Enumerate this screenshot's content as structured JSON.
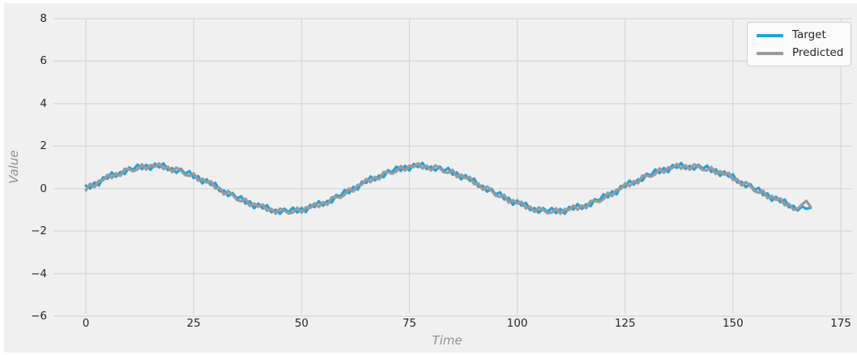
{
  "chart_data": {
    "type": "line",
    "title": "",
    "xlabel": "Time",
    "ylabel": "Value",
    "xlim": [
      -7.5,
      177.5
    ],
    "ylim": [
      -6,
      8
    ],
    "grid": true,
    "legend_position": "upper right",
    "style": "fivethirtyeight-like gray background with light gridlines",
    "xticks": {
      "values": [
        0,
        25,
        50,
        75,
        100,
        125,
        150,
        175
      ],
      "labels": [
        "0",
        "25",
        "50",
        "75",
        "100",
        "125",
        "150",
        "175"
      ]
    },
    "yticks": {
      "values": [
        8,
        6,
        4,
        2,
        0,
        -2,
        -4,
        -6
      ],
      "labels": [
        "8",
        "6",
        "4",
        "2",
        "0",
        "−2",
        "−4",
        "−6"
      ]
    },
    "x_start": 0,
    "x_step": 1,
    "series": [
      {
        "name": "Target",
        "color": "#22a1dd",
        "values": [
          0.14,
          0.01,
          0.29,
          0.15,
          0.53,
          0.47,
          0.76,
          0.56,
          0.78,
          0.69,
          0.99,
          0.88,
          1.13,
          0.92,
          1.12,
          0.89,
          1.17,
          1.0,
          1.18,
          0.87,
          0.96,
          0.75,
          0.93,
          0.7,
          0.82,
          0.5,
          0.59,
          0.25,
          0.43,
          0.17,
          0.27,
          -0.12,
          -0.09,
          -0.35,
          -0.21,
          -0.47,
          -0.37,
          -0.7,
          -0.6,
          -0.92,
          -0.71,
          -0.93,
          -0.78,
          -1.11,
          -1.0,
          -1.18,
          -0.95,
          -1.11,
          -0.9,
          -1.12,
          -0.91,
          -1.1,
          -0.77,
          -0.87,
          -0.6,
          -0.8,
          -0.58,
          -0.65,
          -0.31,
          -0.37,
          -0.07,
          -0.21,
          0.08,
          -0.05,
          0.33,
          0.27,
          0.57,
          0.39,
          0.62,
          0.54,
          0.86,
          0.77,
          1.03,
          0.84,
          1.07,
          0.86,
          1.16,
          1.01,
          1.21,
          0.92,
          1.04,
          0.85,
          1.04,
          0.83,
          0.97,
          0.66,
          0.76,
          0.44,
          0.63,
          0.37,
          0.47,
          0.09,
          0.13,
          -0.14,
          -0.01,
          -0.27,
          -0.17,
          -0.51,
          -0.43,
          -0.76,
          -0.56,
          -0.8,
          -0.67,
          -1.01,
          -0.92,
          -1.13,
          -0.92,
          -1.1,
          -0.91,
          -1.15,
          -0.96,
          -1.18,
          -0.87,
          -0.98,
          -0.73,
          -0.95,
          -0.74,
          -0.82,
          -0.5,
          -0.57,
          -0.27,
          -0.41,
          -0.13,
          -0.27,
          0.12,
          0.07,
          0.37,
          0.19,
          0.43,
          0.37,
          0.7,
          0.62,
          0.9,
          0.73,
          0.97,
          0.78,
          1.11,
          0.98,
          1.2,
          0.93,
          1.07,
          0.9,
          1.12,
          0.93,
          1.08,
          0.79,
          0.91,
          0.6,
          0.8,
          0.56,
          0.67,
          0.29,
          0.33,
          0.07,
          0.21,
          -0.06,
          0.03,
          -0.31,
          -0.23,
          -0.57,
          -0.39,
          -0.64,
          -0.52,
          -0.88,
          -0.81,
          -1.03,
          -0.84,
          -0.95,
          -0.9
        ]
      },
      {
        "name": "Predicted",
        "color": "#9a9a9a",
        "values": [
          -0.08,
          0.23,
          0.07,
          0.37,
          0.39,
          0.65,
          0.5,
          0.72,
          0.6,
          0.93,
          0.91,
          0.82,
          0.91,
          1.14,
          0.9,
          1.11,
          1.03,
          1.18,
          0.92,
          1.03,
          0.78,
          0.99,
          0.85,
          0.64,
          0.6,
          0.72,
          0.37,
          0.47,
          0.29,
          0.35,
          0.01,
          0.04,
          -0.27,
          -0.11,
          -0.29,
          -0.53,
          -0.59,
          -0.48,
          -0.82,
          -0.7,
          -0.85,
          -0.75,
          -1.04,
          -0.95,
          -1.18,
          -0.94,
          -1.03,
          -1.17,
          -1.12,
          -0.9,
          -1.13,
          -0.88,
          -0.91,
          -0.69,
          -0.86,
          -0.64,
          -0.76,
          -0.41,
          -0.39,
          -0.43,
          -0.29,
          0.01,
          -0.14,
          0.17,
          0.19,
          0.45,
          0.31,
          0.55,
          0.44,
          0.78,
          0.78,
          0.71,
          0.81,
          1.06,
          0.85,
          1.08,
          1.02,
          1.19,
          0.95,
          1.08,
          0.86,
          1.09,
          0.96,
          0.77,
          0.75,
          0.88,
          0.54,
          0.66,
          0.49,
          0.55,
          0.21,
          0.25,
          -0.05,
          0.1,
          -0.09,
          -0.33,
          -0.39,
          -0.29,
          -0.65,
          -0.54,
          -0.7,
          -0.62,
          -0.93,
          -0.85,
          -1.1,
          -0.89,
          -1.0,
          -1.16,
          -1.13,
          -0.93,
          -1.18,
          -0.96,
          -1.01,
          -0.8,
          -0.99,
          -0.79,
          -0.92,
          -0.58,
          -0.58,
          -0.63,
          -0.49,
          -0.19,
          -0.35,
          -0.05,
          -0.02,
          0.25,
          0.11,
          0.35,
          0.25,
          0.61,
          0.62,
          0.56,
          0.68,
          0.95,
          0.75,
          1.0,
          0.97,
          1.16,
          0.94,
          1.09,
          0.89,
          1.14,
          1.04,
          0.87,
          0.86,
          1.01,
          0.69,
          0.82,
          0.66,
          0.74,
          0.41,
          0.45,
          0.15,
          0.31,
          0.13,
          -0.12,
          -0.19,
          -0.09,
          -0.45,
          -0.35,
          -0.53,
          -0.46,
          -0.78,
          -0.72,
          -0.99,
          -0.95,
          -0.75,
          -0.58,
          -0.85
        ]
      }
    ],
    "colors": {
      "figure_background": "#f0f0f0",
      "gridline": "#d6d6d6",
      "tick_label": "#262626",
      "axis_label": "#8f8f8f",
      "legend_background": "#fafafa",
      "legend_border": "#cfcfcf"
    }
  }
}
